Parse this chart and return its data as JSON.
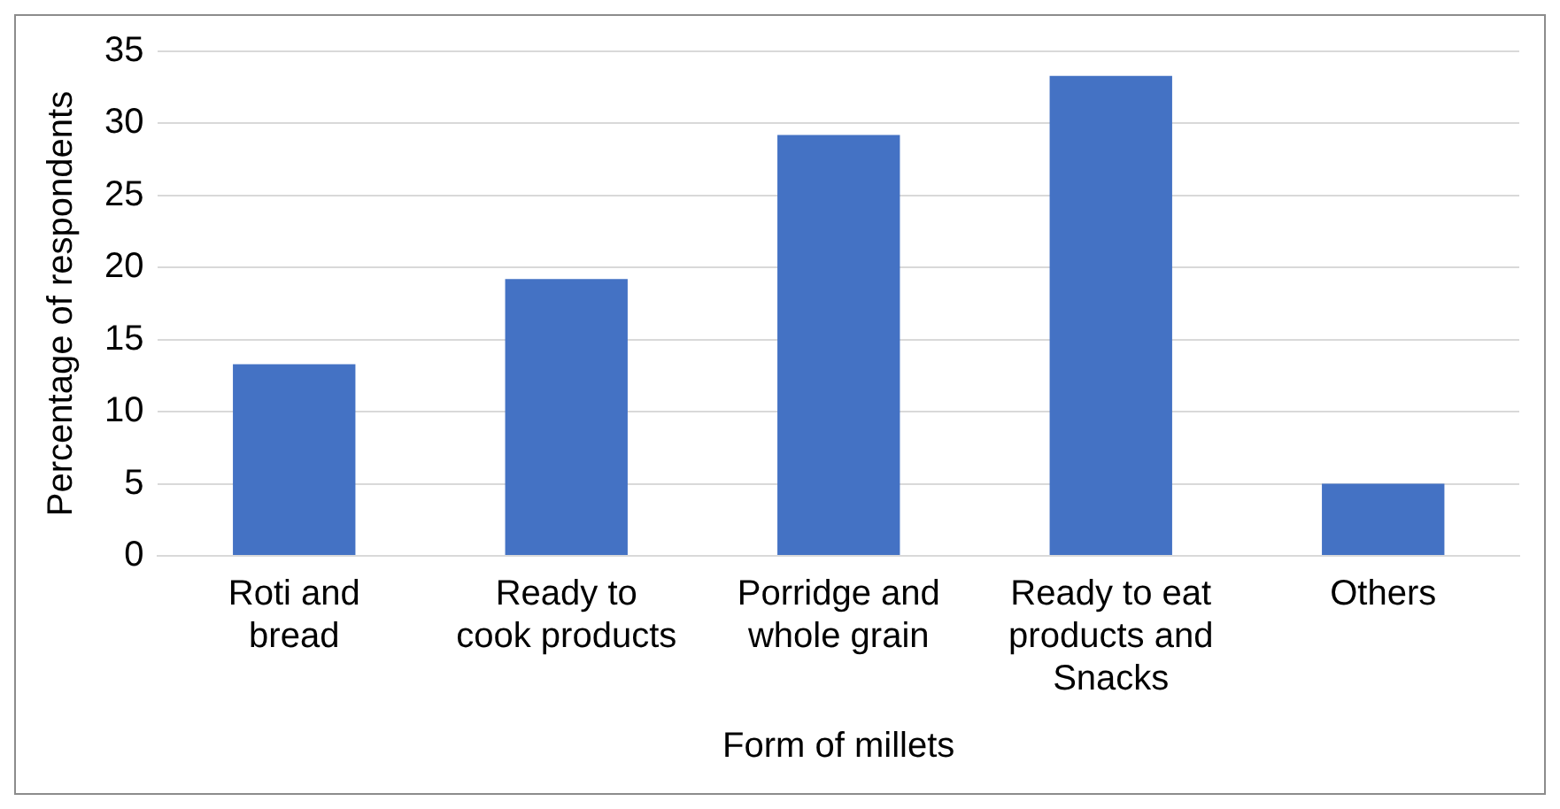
{
  "chart_data": {
    "type": "bar",
    "xlabel": "Form of millets",
    "ylabel": "Percentage of respondents",
    "categories": [
      "Roti and bread",
      "Ready to cook products",
      "Porridge and whole grain",
      "Ready to eat products and Snacks",
      "Others"
    ],
    "values": [
      13.3,
      19.2,
      29.2,
      33.3,
      5.0
    ],
    "color": "#4472c4",
    "ylim": [
      0,
      35
    ],
    "yticks": [
      0,
      5,
      10,
      15,
      20,
      25,
      30,
      35
    ],
    "grid": "y",
    "legend": false
  }
}
